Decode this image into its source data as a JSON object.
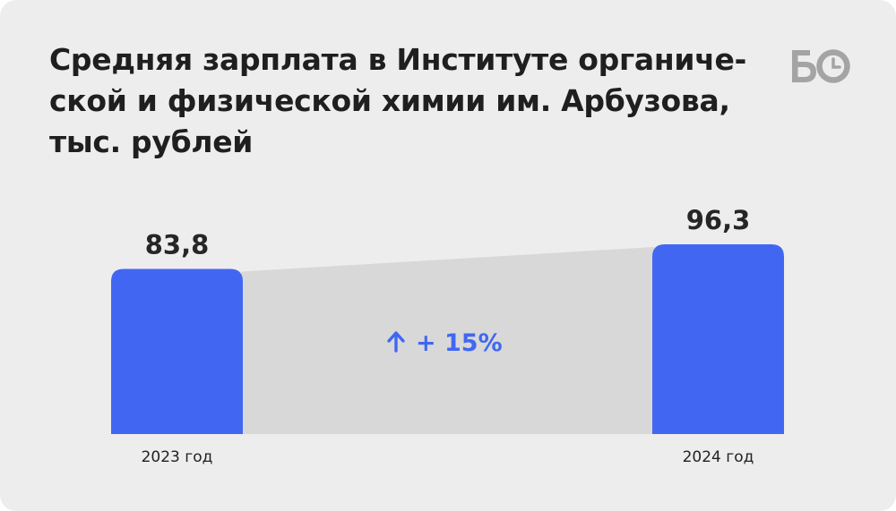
{
  "title": "Средняя зарплата в Институте органиче-ской и физической химии им. Арбузова, тыс. рублей",
  "title_lines": [
    "Средняя зарплата в Институте органиче-",
    "ской и физической химии им. Арбузова,",
    "тыс. рублей"
  ],
  "logo": {
    "text": "БО",
    "icon": "clock-icon",
    "color": "#a4a4a4"
  },
  "colors": {
    "bar": "#4167f2",
    "connector": "#d8d8d8",
    "background": "#ededed",
    "delta": "#4167f2"
  },
  "chart_data": {
    "type": "bar",
    "title": "Средняя зарплата в Институте органической и физической химии им. Арбузова, тыс. рублей",
    "categories": [
      "2023 год",
      "2024 год"
    ],
    "values": [
      83.8,
      96.3
    ],
    "value_labels": [
      "83,8",
      "96,3"
    ],
    "annotation": {
      "arrow": "up-arrow-icon",
      "text": "+ 15%"
    },
    "ylim": [
      0,
      96.3
    ],
    "grid": false,
    "legend": "none"
  }
}
